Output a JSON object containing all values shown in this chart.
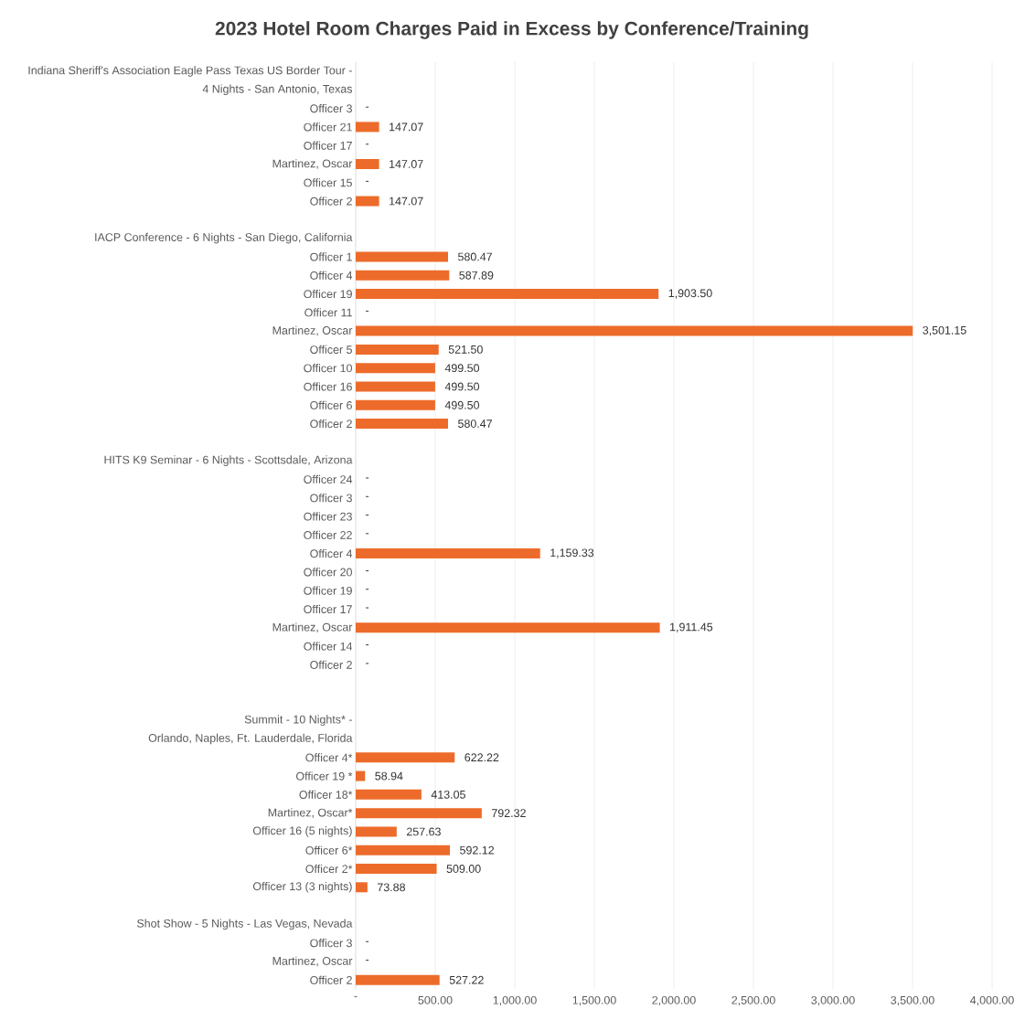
{
  "chart_data": {
    "type": "bar",
    "orientation": "horizontal",
    "title": "2023 Hotel Room Charges Paid in Excess by Conference/Training",
    "categories": [
      "Indiana Sheriff's Association Eagle Pass Texas US Border Tour -",
      "4 Nights - San Antonio, Texas",
      "Officer 3",
      "Officer 21",
      "Officer 17",
      "Martinez, Oscar",
      "Officer 15",
      "Officer 2",
      null,
      "IACP Conference - 6 Nights - San Diego, California",
      "Officer 1",
      "Officer 4",
      "Officer 19",
      "Officer 11",
      "Martinez, Oscar",
      "Officer 5",
      "Officer 10",
      "Officer 16",
      "Officer 6",
      "Officer 2",
      null,
      "HITS K9 Seminar - 6 Nights - Scottsdale, Arizona",
      "Officer 24",
      "Officer 3",
      "Officer 23",
      "Officer 22",
      "Officer 4",
      "Officer 20",
      "Officer 19",
      "Officer 17",
      "Martinez, Oscar",
      "Officer 14",
      "Officer 2",
      null,
      null,
      "Summit - 10 Nights* -",
      "Orlando, Naples, Ft. Lauderdale, Florida",
      "Officer 4*",
      "Officer 19 *",
      "Officer 18*",
      "Martinez, Oscar*",
      "Officer 16 (5 nights)",
      "Officer 6*",
      "Officer 2*",
      "Officer 13 (3 nights)",
      null,
      "Shot Show - 5 Nights - Las Vegas, Nevada",
      "Officer 3",
      "Martinez, Oscar",
      "Officer 2"
    ],
    "values": [
      null,
      null,
      0,
      147.07,
      0,
      147.07,
      0,
      147.07,
      null,
      null,
      580.47,
      587.89,
      1903.5,
      0,
      3501.15,
      521.5,
      499.5,
      499.5,
      499.5,
      580.47,
      null,
      null,
      0,
      0,
      0,
      0,
      1159.33,
      0,
      0,
      0,
      1911.45,
      0,
      0,
      null,
      null,
      null,
      null,
      622.22,
      58.94,
      413.05,
      792.32,
      257.63,
      592.12,
      509.0,
      73.88,
      null,
      null,
      0,
      0,
      527.22
    ],
    "value_labels": [
      null,
      null,
      "-",
      "147.07",
      "-",
      "147.07",
      "-",
      "147.07",
      null,
      null,
      "580.47",
      "587.89",
      "1,903.50",
      "-",
      "3,501.15",
      "521.50",
      "499.50",
      "499.50",
      "499.50",
      "580.47",
      null,
      null,
      "-",
      "-",
      "-",
      "-",
      "1,159.33",
      "-",
      "-",
      "-",
      "1,911.45",
      "-",
      "-",
      null,
      null,
      null,
      null,
      "622.22",
      "58.94",
      "413.05",
      "792.32",
      "257.63",
      "592.12",
      "509.00",
      "73.88",
      null,
      null,
      "-",
      "-",
      "527.22"
    ],
    "color": "#ed6b2a",
    "xlim": [
      0,
      4000
    ],
    "xticks": [
      {
        "value": 0,
        "label": "-"
      },
      {
        "value": 500,
        "label": "500.00"
      },
      {
        "value": 1000,
        "label": "1,000.00"
      },
      {
        "value": 1500,
        "label": "1,500.00"
      },
      {
        "value": 2000,
        "label": "2,000.00"
      },
      {
        "value": 2500,
        "label": "2,500.00"
      },
      {
        "value": 3000,
        "label": "3,000.00"
      },
      {
        "value": 3500,
        "label": "3,500.00"
      },
      {
        "value": 4000,
        "label": "4,000.00"
      }
    ],
    "grid": "x"
  }
}
